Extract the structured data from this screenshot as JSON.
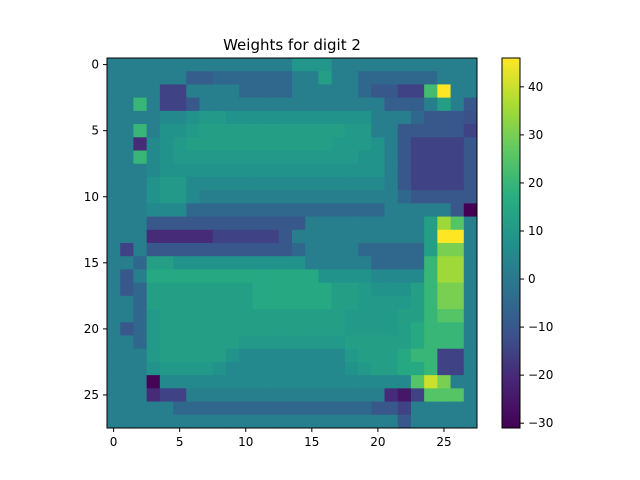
{
  "chart_data": {
    "type": "heatmap",
    "title": "Weights for digit 2",
    "xlabel": "",
    "ylabel": "",
    "rows": 28,
    "cols": 28,
    "x_ticks": [
      0,
      5,
      10,
      15,
      20,
      25
    ],
    "y_ticks": [
      0,
      5,
      10,
      15,
      20,
      25
    ],
    "colormap": "viridis",
    "colorbar": {
      "vmin": -31,
      "vmax": 46,
      "ticks": [
        40,
        30,
        20,
        10,
        0,
        -10,
        -20,
        -30
      ]
    },
    "matrix": [
      [
        2,
        2,
        2,
        2,
        2,
        2,
        2,
        2,
        2,
        2,
        2,
        2,
        2,
        2,
        9,
        9,
        9,
        2,
        2,
        2,
        2,
        2,
        2,
        2,
        2,
        2,
        2,
        2
      ],
      [
        2,
        2,
        2,
        2,
        2,
        2,
        -8,
        -8,
        -5,
        -5,
        -5,
        -5,
        -5,
        -5,
        2,
        2,
        12,
        2,
        2,
        -5,
        -5,
        -5,
        -5,
        -5,
        -5,
        2,
        2,
        2
      ],
      [
        2,
        2,
        2,
        2,
        -15,
        -15,
        2,
        2,
        2,
        2,
        -5,
        -5,
        -5,
        -5,
        2,
        2,
        2,
        2,
        2,
        -5,
        -10,
        -10,
        -15,
        -15,
        22,
        46,
        2,
        2
      ],
      [
        2,
        2,
        20,
        2,
        -15,
        -15,
        -10,
        2,
        2,
        2,
        2,
        2,
        2,
        2,
        2,
        2,
        2,
        2,
        2,
        2,
        2,
        -8,
        -8,
        -8,
        2,
        12,
        2,
        -10
      ],
      [
        2,
        2,
        2,
        2,
        5,
        5,
        8,
        10,
        10,
        8,
        8,
        8,
        8,
        8,
        8,
        8,
        8,
        8,
        8,
        8,
        2,
        2,
        2,
        -5,
        -10,
        -10,
        -10,
        -12
      ],
      [
        2,
        2,
        20,
        2,
        8,
        8,
        10,
        12,
        12,
        12,
        12,
        12,
        12,
        12,
        12,
        12,
        12,
        12,
        10,
        10,
        2,
        2,
        -10,
        -10,
        -10,
        -10,
        -10,
        -15
      ],
      [
        2,
        2,
        -20,
        5,
        8,
        10,
        12,
        12,
        12,
        12,
        12,
        12,
        12,
        12,
        12,
        12,
        12,
        10,
        10,
        10,
        8,
        2,
        -10,
        -15,
        -15,
        -15,
        -15,
        -10
      ],
      [
        2,
        2,
        20,
        5,
        8,
        10,
        10,
        10,
        10,
        10,
        10,
        10,
        10,
        10,
        10,
        10,
        10,
        10,
        10,
        8,
        8,
        2,
        -10,
        -15,
        -15,
        -15,
        -15,
        -10
      ],
      [
        2,
        2,
        2,
        5,
        8,
        8,
        8,
        8,
        8,
        8,
        8,
        8,
        8,
        8,
        8,
        8,
        8,
        8,
        8,
        8,
        8,
        2,
        -10,
        -15,
        -15,
        -15,
        -15,
        -10
      ],
      [
        2,
        2,
        2,
        8,
        10,
        10,
        5,
        5,
        5,
        5,
        5,
        5,
        5,
        5,
        5,
        5,
        5,
        5,
        5,
        5,
        5,
        2,
        -10,
        -15,
        -15,
        -15,
        -15,
        -10
      ],
      [
        2,
        2,
        2,
        8,
        10,
        10,
        5,
        2,
        2,
        2,
        2,
        2,
        2,
        2,
        2,
        2,
        2,
        2,
        2,
        2,
        2,
        2,
        -5,
        -10,
        -10,
        -10,
        -10,
        -10
      ],
      [
        2,
        2,
        2,
        5,
        5,
        5,
        -5,
        -5,
        -5,
        -5,
        -5,
        -5,
        -5,
        -5,
        -5,
        -5,
        -5,
        -5,
        -5,
        -5,
        -5,
        2,
        2,
        2,
        2,
        2,
        -10,
        -31
      ],
      [
        2,
        2,
        2,
        -10,
        -10,
        -10,
        -10,
        -10,
        -10,
        -10,
        -10,
        -10,
        -10,
        -10,
        -10,
        2,
        2,
        2,
        2,
        2,
        2,
        2,
        2,
        2,
        12,
        35,
        25,
        2
      ],
      [
        2,
        2,
        2,
        -20,
        -20,
        -20,
        -20,
        -20,
        -15,
        -15,
        -15,
        -15,
        -15,
        -10,
        2,
        2,
        2,
        2,
        2,
        2,
        2,
        2,
        2,
        2,
        12,
        46,
        46,
        2
      ],
      [
        2,
        -15,
        2,
        -10,
        -10,
        -10,
        -10,
        -10,
        -10,
        -10,
        -10,
        -10,
        -10,
        -10,
        -5,
        2,
        2,
        2,
        2,
        -5,
        -5,
        -5,
        -5,
        -5,
        12,
        30,
        30,
        2
      ],
      [
        2,
        2,
        -5,
        12,
        12,
        8,
        8,
        8,
        8,
        8,
        8,
        8,
        8,
        8,
        8,
        2,
        2,
        2,
        2,
        2,
        -5,
        -5,
        -5,
        -5,
        20,
        35,
        35,
        2
      ],
      [
        2,
        -10,
        2,
        15,
        15,
        15,
        15,
        15,
        15,
        15,
        15,
        15,
        15,
        15,
        15,
        15,
        8,
        8,
        8,
        8,
        5,
        5,
        5,
        5,
        20,
        35,
        35,
        2
      ],
      [
        2,
        -10,
        -5,
        12,
        12,
        12,
        12,
        12,
        12,
        12,
        12,
        15,
        15,
        15,
        15,
        15,
        15,
        12,
        12,
        10,
        8,
        8,
        8,
        12,
        20,
        30,
        30,
        2
      ],
      [
        2,
        2,
        -5,
        12,
        12,
        12,
        12,
        12,
        12,
        12,
        12,
        15,
        15,
        15,
        15,
        15,
        15,
        12,
        12,
        10,
        10,
        10,
        10,
        12,
        20,
        30,
        30,
        2
      ],
      [
        2,
        2,
        -5,
        10,
        12,
        12,
        12,
        12,
        12,
        12,
        12,
        12,
        12,
        12,
        12,
        12,
        12,
        12,
        10,
        10,
        10,
        10,
        12,
        12,
        20,
        25,
        25,
        2
      ],
      [
        2,
        -10,
        -5,
        10,
        12,
        12,
        12,
        12,
        12,
        12,
        12,
        12,
        12,
        12,
        12,
        12,
        12,
        12,
        10,
        10,
        10,
        10,
        12,
        15,
        20,
        20,
        20,
        2
      ],
      [
        2,
        2,
        -5,
        10,
        12,
        12,
        12,
        12,
        12,
        12,
        10,
        10,
        10,
        10,
        10,
        10,
        10,
        10,
        12,
        12,
        12,
        12,
        12,
        15,
        20,
        20,
        20,
        2
      ],
      [
        2,
        2,
        2,
        10,
        12,
        12,
        12,
        12,
        12,
        8,
        5,
        5,
        5,
        5,
        5,
        5,
        5,
        5,
        10,
        12,
        12,
        12,
        15,
        20,
        20,
        -15,
        -15,
        2
      ],
      [
        2,
        2,
        2,
        8,
        10,
        10,
        10,
        10,
        8,
        5,
        5,
        5,
        5,
        5,
        5,
        5,
        5,
        5,
        8,
        10,
        12,
        12,
        15,
        15,
        20,
        -15,
        -15,
        2
      ],
      [
        2,
        2,
        2,
        -30,
        5,
        5,
        5,
        5,
        5,
        5,
        5,
        5,
        5,
        5,
        5,
        5,
        5,
        5,
        5,
        5,
        5,
        5,
        5,
        25,
        40,
        30,
        2,
        2
      ],
      [
        2,
        2,
        2,
        -20,
        -15,
        -15,
        2,
        2,
        2,
        2,
        2,
        2,
        2,
        2,
        2,
        2,
        2,
        2,
        2,
        2,
        2,
        -20,
        -25,
        -15,
        25,
        25,
        25,
        2
      ],
      [
        2,
        2,
        2,
        2,
        2,
        -5,
        -5,
        -5,
        -5,
        -5,
        -5,
        -5,
        -5,
        -5,
        -5,
        -5,
        -5,
        -5,
        -5,
        -5,
        -10,
        -10,
        -15,
        2,
        2,
        2,
        2,
        2
      ],
      [
        2,
        2,
        2,
        2,
        2,
        2,
        2,
        2,
        2,
        2,
        2,
        2,
        2,
        2,
        2,
        2,
        2,
        2,
        2,
        2,
        2,
        2,
        -10,
        2,
        2,
        2,
        2,
        2
      ]
    ]
  }
}
